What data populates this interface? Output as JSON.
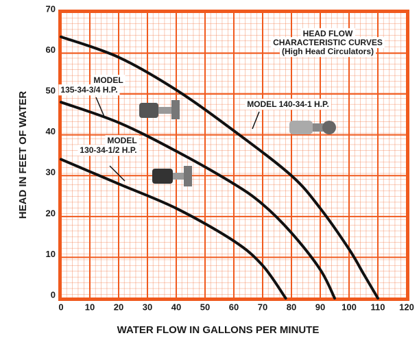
{
  "chart_data": {
    "type": "line",
    "title_lines": [
      "HEAD FLOW",
      "CHARACTERISTIC CURVES",
      "(High Head Circulators)"
    ],
    "x_label": "WATER FLOW IN GALLONS PER MINUTE",
    "y_label": "HEAD IN FEET OF WATER",
    "xlim": [
      0,
      120
    ],
    "ylim": [
      0,
      70
    ],
    "xticks": [
      0,
      10,
      20,
      30,
      40,
      50,
      60,
      70,
      80,
      90,
      100,
      110,
      120
    ],
    "yticks": [
      0,
      10,
      20,
      30,
      40,
      50,
      60,
      70
    ],
    "grid": true,
    "grid_color": "#f05a1e",
    "series": [
      {
        "label_lines": [
          "MODEL 140-34-1 H.P."
        ],
        "color": "#111111",
        "x": [
          0,
          20,
          40,
          60,
          80,
          90,
          100,
          105,
          110
        ],
        "values": [
          64,
          59,
          51,
          41,
          30,
          22,
          12,
          6,
          0
        ]
      },
      {
        "label_lines": [
          "MODEL",
          "135-34-3/4 H.P."
        ],
        "color": "#111111",
        "x": [
          0,
          20,
          40,
          60,
          70,
          80,
          90,
          95
        ],
        "values": [
          48,
          43,
          36,
          28,
          23,
          16,
          7,
          0
        ]
      },
      {
        "label_lines": [
          "MODEL",
          "130-34-1/2 H.P."
        ],
        "color": "#111111",
        "x": [
          0,
          20,
          40,
          60,
          70,
          78
        ],
        "values": [
          34,
          28,
          22,
          14,
          8,
          0
        ]
      }
    ]
  }
}
